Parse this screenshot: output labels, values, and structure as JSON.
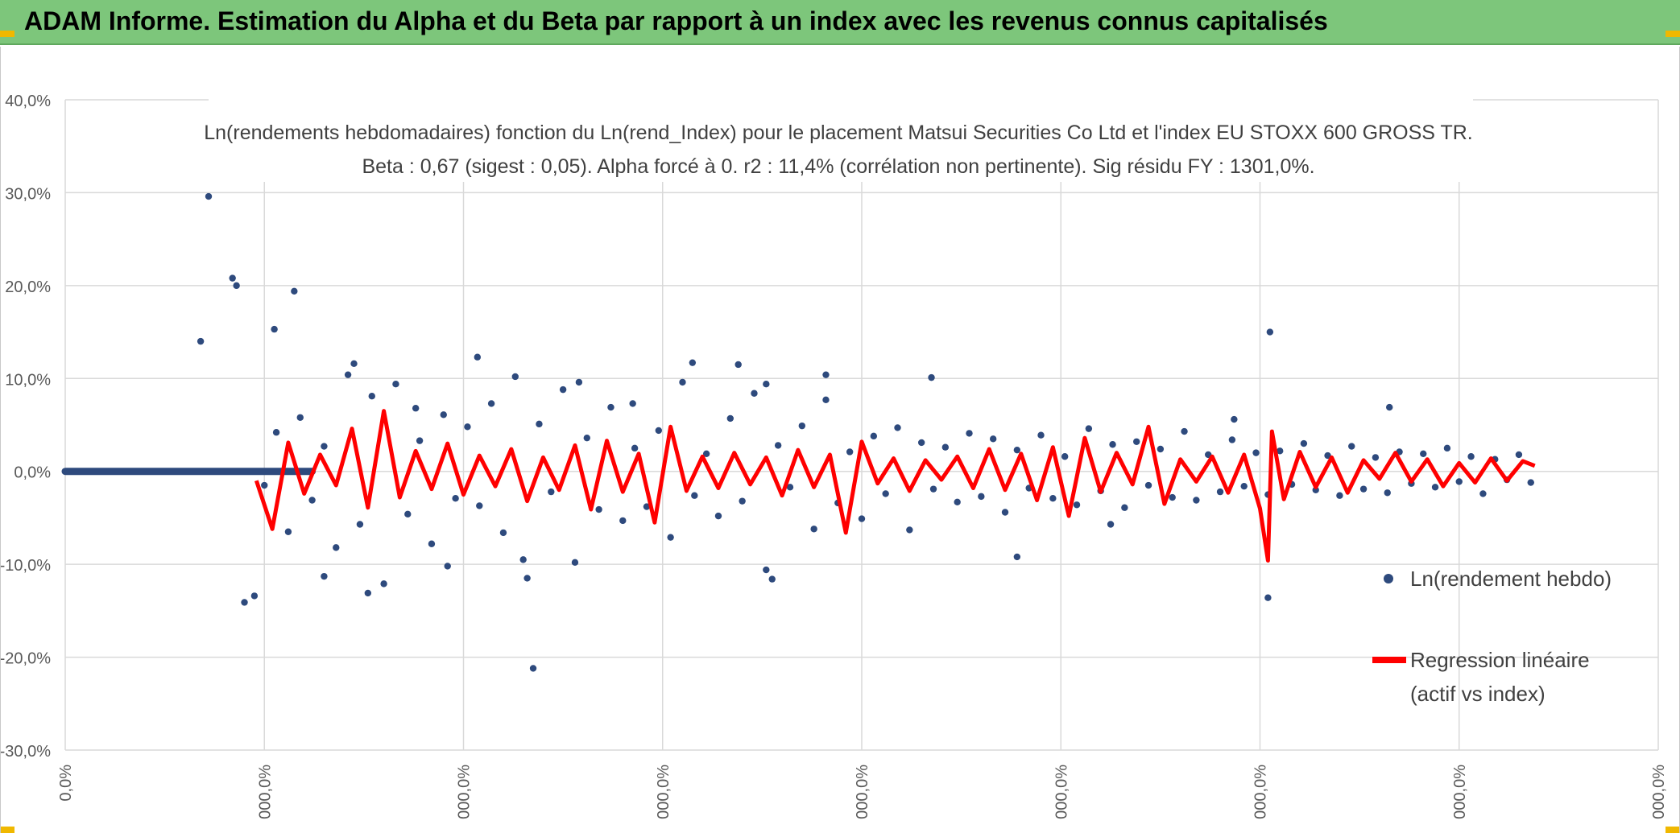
{
  "header": {
    "title": "ADAM Informe. Estimation du Alpha et du Beta par rapport à un index avec les revenus connus capitalisés",
    "background": "#7dc67b",
    "accent": "#f0b800"
  },
  "chart_data": {
    "type": "scatter",
    "title_line1": "Ln(rendements hebdomadaires) fonction du Ln(rend_Index) pour le placement Matsui Securities Co Ltd et l'index EU STOXX 600 GROSS TR.",
    "title_line2": "Beta : 0,67 (sigest : 0,05). Alpha forcé à 0. r2 : 11,4% (corrélation non pertinente). Sig résidu FY : 1301,0%.",
    "ylim": [
      -30,
      40
    ],
    "y_ticks": [
      "40,0%",
      "30,0%",
      "20,0%",
      "10,0%",
      "0,0%",
      "-10,0%",
      "-20,0%",
      "-30,0%"
    ],
    "y_tick_values": [
      40,
      30,
      20,
      10,
      0,
      -10,
      -20,
      -30
    ],
    "x_ticks": [
      "0,0%",
      "000,0%",
      "000,0%",
      "000,0%",
      "000,0%",
      "000,0%",
      "000,0%",
      "000,0%",
      "000,0%"
    ],
    "grid": true,
    "legend_position": "right",
    "series": [
      {
        "name": "Ln(rendement hebdo)",
        "kind": "markers",
        "color": "#2e4a7d",
        "x": [
          0.12,
          0.16,
          0.22,
          0.28,
          0.34,
          0.4,
          0.46,
          0.52,
          0.58,
          0.64,
          0.7,
          0.76,
          0.82,
          0.88,
          0.94,
          1.0,
          1.06,
          1.12,
          1.18,
          1.24,
          1.3,
          1.36,
          1.42,
          1.48,
          1.54,
          1.6,
          1.66,
          1.72,
          1.78,
          1.84,
          1.9,
          1.96,
          2.02,
          2.08,
          2.14,
          2.2,
          2.26,
          2.32,
          2.38,
          2.44,
          2.5,
          2.56,
          2.62,
          2.68,
          2.74,
          2.8,
          2.86,
          2.92,
          2.98,
          3.04,
          3.1,
          3.16,
          3.22,
          3.28,
          3.34,
          3.4,
          3.46,
          3.52,
          3.58,
          3.64,
          3.7,
          3.76,
          3.82,
          3.88,
          3.94,
          4.0,
          4.06,
          4.12,
          4.18,
          4.24,
          4.3,
          4.36,
          4.42,
          4.48,
          4.54,
          4.6,
          4.66,
          4.72,
          4.78,
          4.84,
          4.9,
          4.96,
          5.02,
          5.08,
          5.14,
          5.2,
          5.26,
          5.32,
          5.38,
          5.44,
          5.5,
          5.56,
          5.62,
          5.68,
          5.74,
          5.8,
          5.86,
          5.92,
          5.98,
          6.04,
          6.1,
          6.16,
          6.22,
          6.28,
          6.34,
          6.4,
          6.46,
          6.52,
          6.58,
          6.64,
          6.7,
          6.76,
          6.82,
          6.88,
          6.94,
          7.0,
          7.06,
          7.12,
          7.18,
          7.24,
          7.3,
          7.36,
          0.68,
          0.72,
          0.84,
          0.86,
          1.15,
          2.07,
          3.38,
          3.52,
          3.15,
          3.82,
          6.05,
          6.04,
          1.52,
          0.9,
          1.3,
          2.35,
          2.3,
          3.55,
          4.78,
          5.25,
          1.45,
          0.95,
          2.58,
          1.05,
          1.92,
          4.35,
          6.65,
          1.76,
          2.85,
          5.87
        ],
        "y": [
          0.0,
          0.0,
          0.0,
          0.0,
          0.0,
          0.0,
          0.0,
          0.0,
          0.0,
          0.0,
          0.0,
          0.0,
          0.0,
          0.0,
          0.0,
          -1.5,
          4.2,
          -6.5,
          5.8,
          -3.1,
          2.7,
          -8.2,
          10.4,
          -5.7,
          8.1,
          -12.1,
          9.4,
          -4.6,
          3.3,
          -7.8,
          6.1,
          -2.9,
          4.8,
          -3.7,
          7.3,
          -6.6,
          10.2,
          -11.5,
          5.1,
          -2.2,
          8.8,
          -9.8,
          3.6,
          -4.1,
          6.9,
          -5.3,
          2.5,
          -3.8,
          4.4,
          -7.1,
          9.6,
          -2.6,
          1.9,
          -4.8,
          5.7,
          -3.2,
          8.4,
          -10.6,
          2.8,
          -1.7,
          4.9,
          -6.2,
          7.7,
          -3.4,
          2.1,
          -5.1,
          3.8,
          -2.4,
          4.7,
          -6.3,
          3.1,
          -1.9,
          2.6,
          -3.3,
          4.1,
          -2.7,
          3.5,
          -4.4,
          2.3,
          -1.8,
          3.9,
          -2.9,
          1.6,
          -3.6,
          4.6,
          -2.1,
          2.9,
          -3.9,
          3.2,
          -1.5,
          2.4,
          -2.8,
          4.3,
          -3.1,
          1.8,
          -2.2,
          3.4,
          -1.6,
          2.0,
          -2.5,
          2.2,
          -1.4,
          3.0,
          -2.0,
          1.7,
          -2.6,
          2.7,
          -1.9,
          1.5,
          -2.3,
          2.1,
          -1.3,
          1.9,
          -1.7,
          2.5,
          -1.1,
          1.6,
          -2.4,
          1.3,
          -0.9,
          1.8,
          -1.2,
          14.0,
          29.6,
          20.8,
          20.0,
          19.4,
          12.3,
          11.5,
          9.4,
          11.7,
          10.4,
          15.0,
          -13.6,
          -13.1,
          -14.1,
          -11.3,
          -21.2,
          -9.5,
          -11.6,
          -9.2,
          -5.7,
          11.6,
          -13.4,
          9.6,
          15.3,
          -10.2,
          10.1,
          6.9,
          6.8,
          7.3,
          5.6
        ],
        "note": "approximate sample of the plotted weekly points"
      },
      {
        "name": "Regression linéaire (actif vs index)",
        "kind": "line",
        "color": "#ff0000",
        "x": [
          0.96,
          1.04,
          1.12,
          1.2,
          1.28,
          1.36,
          1.44,
          1.52,
          1.6,
          1.68,
          1.76,
          1.84,
          1.92,
          2.0,
          2.08,
          2.16,
          2.24,
          2.32,
          2.4,
          2.48,
          2.56,
          2.64,
          2.72,
          2.8,
          2.88,
          2.96,
          3.04,
          3.12,
          3.2,
          3.28,
          3.36,
          3.44,
          3.52,
          3.6,
          3.68,
          3.76,
          3.84,
          3.92,
          4.0,
          4.08,
          4.16,
          4.24,
          4.32,
          4.4,
          4.48,
          4.56,
          4.64,
          4.72,
          4.8,
          4.88,
          4.96,
          5.04,
          5.12,
          5.2,
          5.28,
          5.36,
          5.44,
          5.52,
          5.6,
          5.68,
          5.76,
          5.84,
          5.92,
          6.0,
          6.04,
          6.06,
          6.12,
          6.2,
          6.28,
          6.36,
          6.44,
          6.52,
          6.6,
          6.68,
          6.76,
          6.84,
          6.92,
          7.0,
          7.08,
          7.16,
          7.24,
          7.32,
          7.38
        ],
        "y": [
          -1.0,
          -6.2,
          3.1,
          -2.4,
          1.8,
          -1.5,
          4.6,
          -3.9,
          6.5,
          -2.8,
          2.2,
          -1.9,
          3.0,
          -2.5,
          1.7,
          -1.6,
          2.4,
          -3.2,
          1.5,
          -2.0,
          2.8,
          -4.1,
          3.3,
          -2.2,
          1.9,
          -5.5,
          4.8,
          -2.1,
          1.6,
          -1.8,
          2.0,
          -1.4,
          1.5,
          -2.6,
          2.3,
          -1.7,
          1.8,
          -6.6,
          3.2,
          -1.3,
          1.4,
          -2.1,
          1.2,
          -0.9,
          1.6,
          -1.8,
          2.4,
          -2.0,
          1.9,
          -3.1,
          2.6,
          -4.8,
          3.6,
          -2.2,
          2.0,
          -1.4,
          4.8,
          -3.5,
          1.3,
          -1.1,
          1.6,
          -2.3,
          1.8,
          -4.0,
          -9.6,
          4.3,
          -3.0,
          2.1,
          -1.7,
          1.5,
          -2.3,
          1.2,
          -0.8,
          2.0,
          -1.1,
          1.3,
          -1.6,
          0.9,
          -1.2,
          1.4,
          -1.0,
          1.1,
          0.6
        ],
        "note": "approximate fitted values"
      }
    ]
  }
}
